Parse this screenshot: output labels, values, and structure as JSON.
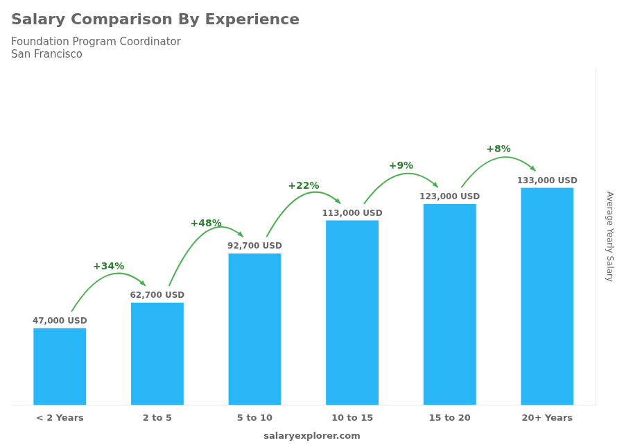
{
  "chart_data": {
    "type": "bar",
    "title": "Salary Comparison By Experience",
    "subtitle": [
      "Foundation Program Coordinator",
      "San Francisco"
    ],
    "ylabel": "Average Yearly Salary",
    "categories": [
      "< 2 Years",
      "2 to 5",
      "5 to 10",
      "10 to 15",
      "15 to 20",
      "20+ Years"
    ],
    "values": [
      47000,
      62700,
      92700,
      113000,
      123000,
      133000
    ],
    "value_labels": [
      "47,000 USD",
      "62,700 USD",
      "92,700 USD",
      "113,000 USD",
      "123,000 USD",
      "133,000 USD"
    ],
    "data_labels": true,
    "annotations": [
      "+34%",
      "+48%",
      "+22%",
      "+9%",
      "+8%"
    ],
    "footer": "salaryexplorer.com",
    "color": "#29b6f6",
    "ylim": [
      0,
      206150
    ],
    "grid": false,
    "tick_labels": "x"
  }
}
